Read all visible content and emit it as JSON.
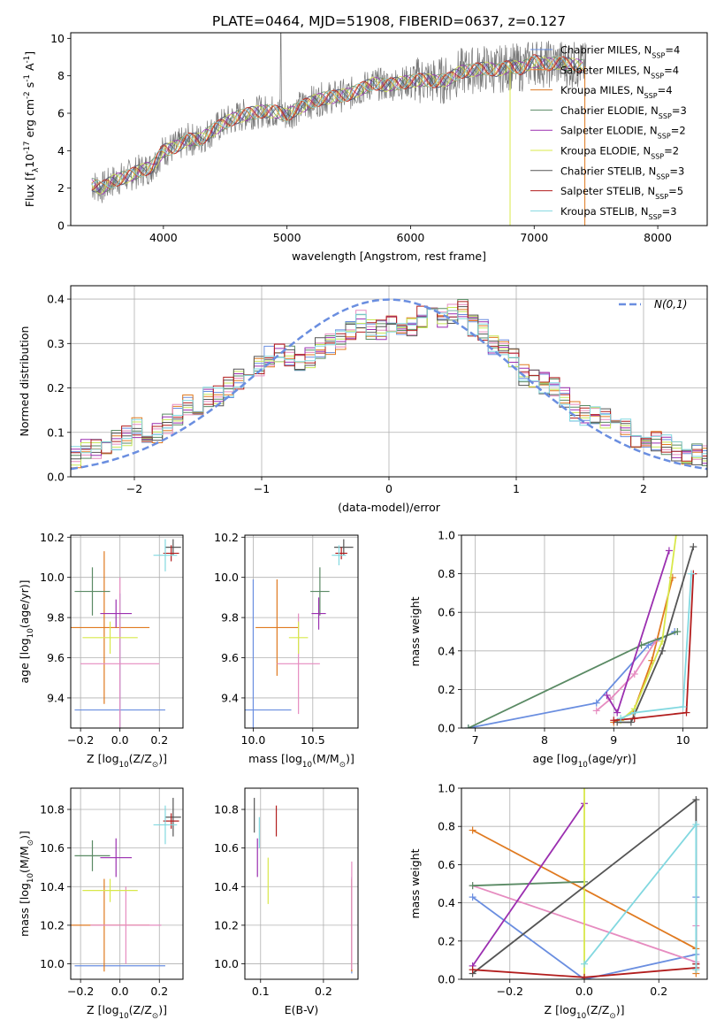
{
  "figure_title": "PLATE=0464, MJD=51908, FIBERID=0637, z=0.127",
  "colors": {
    "c0": "#6a8ee0",
    "c1": "#f07d3c",
    "c2": "#e07a20",
    "c3": "#5a8a64",
    "c4": "#9b2fb0",
    "c5": "#d8e84a",
    "c6": "#555555",
    "c7": "#b21d1d",
    "c8": "#82d8e0",
    "pink": "#e68cc0",
    "lime": "#c8e85a",
    "grid": "#b0b0b0",
    "data": "#777777"
  },
  "legend_panel1": [
    {
      "label": "Chabrier MILES, N$_{SSP}$=4",
      "color": "#6a8ee0"
    },
    {
      "label": "Salpeter MILES, N$_{SSP}$=4",
      "color": "#f07d3c"
    },
    {
      "label": "Kroupa MILES, N$_{SSP}$=4",
      "color": "#e07a20"
    },
    {
      "label": "Chabrier ELODIE, N$_{SSP}$=3",
      "color": "#5a8a64"
    },
    {
      "label": "Salpeter ELODIE, N$_{SSP}$=2",
      "color": "#9b2fb0"
    },
    {
      "label": "Kroupa ELODIE, N$_{SSP}$=2",
      "color": "#d8e84a"
    },
    {
      "label": "Chabrier STELIB, N$_{SSP}$=3",
      "color": "#555555"
    },
    {
      "label": "Salpeter STELIB, N$_{SSP}$=5",
      "color": "#b21d1d"
    },
    {
      "label": "Kroupa STELIB, N$_{SSP}$=3",
      "color": "#82d8e0"
    }
  ],
  "chart_data": [
    {
      "id": "spectrum",
      "type": "line",
      "xlabel": "wavelength [Angstrom, rest frame]",
      "ylabel": "Flux [f$_\\lambda$10$^{-17}$ erg cm$^{-2}$ s$^{-1}$ A$^{-1}$]",
      "xlim": [
        3250,
        8400
      ],
      "ylim": [
        0,
        10.3
      ],
      "xticks": [
        4000,
        5000,
        6000,
        7000,
        8000
      ],
      "yticks": [
        0,
        2,
        4,
        6,
        8,
        10
      ],
      "grid": false,
      "data_points": {
        "x": [
          3420,
          3500,
          3600,
          3700,
          3800,
          3900,
          4000,
          4100,
          4200,
          4300,
          4400,
          4500,
          4600,
          4700,
          4800,
          4900,
          5000,
          5100,
          5200,
          5300,
          5400,
          5500,
          5600,
          5700,
          5800,
          5900,
          6000,
          6100,
          6200,
          6300,
          6400,
          6500,
          6600,
          6700,
          6800,
          6900,
          7000,
          7100,
          7200,
          7300,
          7400
        ],
        "y": [
          2.2,
          2.0,
          2.4,
          2.6,
          2.9,
          3.1,
          4.0,
          4.2,
          4.6,
          4.6,
          5.1,
          5.5,
          5.8,
          6.0,
          6.1,
          6.1,
          5.9,
          6.3,
          6.6,
          6.8,
          6.9,
          7.0,
          7.3,
          7.6,
          7.5,
          7.6,
          7.7,
          7.8,
          7.7,
          7.8,
          8.2,
          8.3,
          8.4,
          8.3,
          8.5,
          8.4,
          8.8,
          8.6,
          8.7,
          8.6,
          8.5
        ]
      }
    },
    {
      "id": "residual-hist",
      "type": "area",
      "xlabel": "(data-model)/error",
      "ylabel": "Normed distribution",
      "xlim": [
        -2.5,
        2.5
      ],
      "ylim": [
        0,
        0.43
      ],
      "xticks": [
        -2,
        -1,
        0,
        1,
        2
      ],
      "yticks": [
        0.0,
        0.1,
        0.2,
        0.3,
        0.4
      ],
      "grid": true,
      "legend": "top-right",
      "gaussian_label": "$\\mathcal{N}(0,1)$",
      "bin_start": -2.5,
      "bin_width": 0.1,
      "hist": [
        0.045,
        0.06,
        0.065,
        0.075,
        0.08,
        0.09,
        0.11,
        0.1,
        0.1,
        0.12,
        0.14,
        0.16,
        0.16,
        0.18,
        0.18,
        0.2,
        0.22,
        0.24,
        0.25,
        0.27,
        0.28,
        0.27,
        0.26,
        0.27,
        0.29,
        0.3,
        0.31,
        0.33,
        0.35,
        0.33,
        0.33,
        0.35,
        0.32,
        0.34,
        0.36,
        0.38,
        0.36,
        0.37,
        0.38,
        0.34,
        0.33,
        0.3,
        0.29,
        0.27,
        0.23,
        0.22,
        0.21,
        0.2,
        0.18,
        0.15,
        0.14,
        0.14,
        0.13,
        0.12,
        0.11,
        0.09,
        0.08,
        0.08,
        0.07,
        0.06,
        0.05,
        0.05,
        0.05,
        0.05
      ]
    },
    {
      "id": "age-vs-Z",
      "type": "scatter",
      "xlabel": "Z [log$_{10}$(Z/Z$_\\odot$)]",
      "ylabel": "age  [log$_{10}$(age/yr)]",
      "xlim": [
        -0.25,
        0.32
      ],
      "ylim": [
        9.25,
        10.21
      ],
      "xticks": [
        -0.2,
        0.0,
        0.2
      ],
      "yticks": [
        9.4,
        9.6,
        9.8,
        10.0,
        10.2
      ],
      "grid": true,
      "points": [
        {
          "x": 0.0,
          "y": 9.34,
          "xerr": 0.23,
          "yerr": 0.58,
          "color": "#6a8ee0"
        },
        {
          "x": -0.08,
          "y": 9.75,
          "xerr": 0.23,
          "yerr": 0.38,
          "color": "#e07a20"
        },
        {
          "x": 0.0,
          "y": 9.57,
          "xerr": 0.2,
          "yerr": 0.43,
          "color": "#e68cc0"
        },
        {
          "x": -0.14,
          "y": 9.93,
          "xerr": 0.09,
          "yerr": 0.12,
          "color": "#5a8a64"
        },
        {
          "x": -0.02,
          "y": 9.82,
          "xerr": 0.08,
          "yerr": 0.07,
          "color": "#9b2fb0"
        },
        {
          "x": -0.05,
          "y": 9.7,
          "xerr": 0.14,
          "yerr": 0.08,
          "color": "#d8e84a"
        },
        {
          "x": 0.27,
          "y": 10.15,
          "xerr": 0.04,
          "yerr": 0.04,
          "color": "#555555"
        },
        {
          "x": 0.26,
          "y": 10.12,
          "xerr": 0.04,
          "yerr": 0.04,
          "color": "#b21d1d"
        },
        {
          "x": 0.23,
          "y": 10.11,
          "xerr": 0.06,
          "yerr": 0.08,
          "color": "#82d8e0"
        }
      ]
    },
    {
      "id": "age-vs-mass",
      "type": "scatter",
      "xlabel": "mass [log$_{10}$(M/M$_\\odot$)]",
      "ylabel": "",
      "xlim": [
        9.93,
        10.88
      ],
      "ylim": [
        9.25,
        10.21
      ],
      "xticks": [
        10.0,
        10.5
      ],
      "yticks": [
        9.4,
        9.6,
        9.8,
        10.0,
        10.2
      ],
      "grid": true,
      "points": [
        {
          "x": 10.0,
          "y": 9.34,
          "xerr": 0.32,
          "yerr": 0.65,
          "color": "#6a8ee0"
        },
        {
          "x": 10.2,
          "y": 9.75,
          "xerr": 0.18,
          "yerr": 0.24,
          "color": "#e07a20"
        },
        {
          "x": 10.38,
          "y": 9.57,
          "xerr": 0.18,
          "yerr": 0.25,
          "color": "#e68cc0"
        },
        {
          "x": 10.56,
          "y": 9.93,
          "xerr": 0.08,
          "yerr": 0.12,
          "color": "#5a8a64"
        },
        {
          "x": 10.55,
          "y": 9.82,
          "xerr": 0.06,
          "yerr": 0.08,
          "color": "#9b2fb0"
        },
        {
          "x": 10.38,
          "y": 9.7,
          "xerr": 0.08,
          "yerr": 0.08,
          "color": "#d8e84a"
        },
        {
          "x": 10.76,
          "y": 10.15,
          "xerr": 0.08,
          "yerr": 0.04,
          "color": "#555555"
        },
        {
          "x": 10.74,
          "y": 10.12,
          "xerr": 0.05,
          "yerr": 0.03,
          "color": "#b21d1d"
        },
        {
          "x": 10.72,
          "y": 10.11,
          "xerr": 0.06,
          "yerr": 0.05,
          "color": "#82d8e0"
        }
      ]
    },
    {
      "id": "mass-weight-vs-age",
      "type": "line",
      "xlabel": "age  [log$_{10}$(age/yr)]",
      "ylabel": "mass weight",
      "xlim": [
        6.8,
        10.35
      ],
      "ylim": [
        0,
        1.0
      ],
      "xticks": [
        7,
        8,
        9,
        10
      ],
      "yticks": [
        0.0,
        0.2,
        0.4,
        0.6,
        0.8,
        1.0
      ],
      "grid": true,
      "series": [
        {
          "color": "#6a8ee0",
          "x": [
            6.9,
            8.75,
            9.5,
            9.88
          ],
          "y": [
            0.0,
            0.13,
            0.43,
            0.5
          ]
        },
        {
          "color": "#e07a20",
          "x": [
            9.0,
            9.28,
            9.55,
            9.85
          ],
          "y": [
            0.03,
            0.08,
            0.35,
            0.78
          ]
        },
        {
          "color": "#e68cc0",
          "x": [
            8.75,
            8.95,
            9.3,
            9.6
          ],
          "y": [
            0.09,
            0.15,
            0.28,
            0.45
          ]
        },
        {
          "color": "#5a8a64",
          "x": [
            6.9,
            9.4,
            9.92
          ],
          "y": [
            0.0,
            0.43,
            0.5
          ]
        },
        {
          "color": "#9b2fb0",
          "x": [
            8.9,
            9.05,
            9.8
          ],
          "y": [
            0.17,
            0.08,
            0.92
          ]
        },
        {
          "color": "#d8e84a",
          "x": [
            9.1,
            9.3,
            9.7,
            9.9
          ],
          "y": [
            0.04,
            0.1,
            0.45,
            1.0
          ]
        },
        {
          "color": "#555555",
          "x": [
            9.05,
            9.25,
            9.7,
            10.15
          ],
          "y": [
            0.03,
            0.03,
            0.4,
            0.94
          ]
        },
        {
          "color": "#b21d1d",
          "x": [
            9.0,
            9.3,
            10.05,
            10.15
          ],
          "y": [
            0.04,
            0.05,
            0.08,
            0.8
          ]
        },
        {
          "color": "#82d8e0",
          "x": [
            9.1,
            9.3,
            10.0,
            10.12
          ],
          "y": [
            0.05,
            0.08,
            0.11,
            0.8
          ]
        }
      ]
    },
    {
      "id": "mass-vs-Z",
      "type": "scatter",
      "xlabel": "Z [log$_{10}$(Z/Z$_\\odot$)]",
      "ylabel": "mass [log$_{10}$(M/M$_\\odot$)]",
      "xlim": [
        -0.25,
        0.32
      ],
      "ylim": [
        9.92,
        10.91
      ],
      "xticks": [
        -0.2,
        0.0,
        0.2
      ],
      "yticks": [
        10.0,
        10.2,
        10.4,
        10.6,
        10.8
      ],
      "grid": true,
      "points": [
        {
          "x": 0.0,
          "y": 9.99,
          "xerr": 0.23,
          "yerr": 0.0,
          "color": "#6a8ee0"
        },
        {
          "x": -0.08,
          "y": 10.2,
          "xerr": 0.23,
          "yerr": 0.24,
          "color": "#e07a20"
        },
        {
          "x": 0.03,
          "y": 10.2,
          "xerr": 0.18,
          "yerr": 0.2,
          "color": "#e68cc0"
        },
        {
          "x": -0.14,
          "y": 10.56,
          "xerr": 0.09,
          "yerr": 0.08,
          "color": "#5a8a64"
        },
        {
          "x": -0.02,
          "y": 10.55,
          "xerr": 0.08,
          "yerr": 0.1,
          "color": "#9b2fb0"
        },
        {
          "x": -0.05,
          "y": 10.38,
          "xerr": 0.14,
          "yerr": 0.06,
          "color": "#d8e84a"
        },
        {
          "x": 0.27,
          "y": 10.76,
          "xerr": 0.04,
          "yerr": 0.1,
          "color": "#555555"
        },
        {
          "x": 0.26,
          "y": 10.74,
          "xerr": 0.04,
          "yerr": 0.04,
          "color": "#b21d1d"
        },
        {
          "x": 0.23,
          "y": 10.72,
          "xerr": 0.06,
          "yerr": 0.1,
          "color": "#82d8e0"
        }
      ]
    },
    {
      "id": "mass-vs-ebv",
      "type": "scatter",
      "xlabel": "E(B-V)",
      "ylabel": "",
      "xlim": [
        0.075,
        0.255
      ],
      "ylim": [
        9.92,
        10.91
      ],
      "xticks": [
        0.1,
        0.2
      ],
      "yticks": [
        10.0,
        10.2,
        10.4,
        10.6,
        10.8
      ],
      "grid": true,
      "points": [
        {
          "x": 0.245,
          "y": 10.2,
          "yerr": 0.25,
          "color": "#6a8ee0"
        },
        {
          "x": 0.245,
          "y": 10.2,
          "yerr": 0.24,
          "color": "#e07a20"
        },
        {
          "x": 0.245,
          "y": 10.25,
          "yerr": 0.28,
          "color": "#e68cc0"
        },
        {
          "x": 0.09,
          "y": 10.77,
          "yerr": 0.09,
          "color": "#555555"
        },
        {
          "x": 0.125,
          "y": 10.74,
          "yerr": 0.08,
          "color": "#b21d1d"
        },
        {
          "x": 0.098,
          "y": 10.68,
          "yerr": 0.08,
          "color": "#82d8e0"
        },
        {
          "x": 0.095,
          "y": 10.55,
          "yerr": 0.1,
          "color": "#9b2fb0"
        },
        {
          "x": 0.112,
          "y": 10.43,
          "yerr": 0.12,
          "color": "#d8e84a"
        }
      ]
    },
    {
      "id": "mass-weight-vs-Z",
      "type": "line",
      "xlabel": "Z [log$_{10}$(Z/Z$_\\odot$)]",
      "ylabel": "mass weight",
      "xlim": [
        -0.33,
        0.33
      ],
      "ylim": [
        0,
        1.0
      ],
      "xticks": [
        -0.2,
        0.0,
        0.2
      ],
      "yticks": [
        0.0,
        0.2,
        0.4,
        0.6,
        0.8,
        1.0
      ],
      "grid": true,
      "series": [
        {
          "color": "#6a8ee0",
          "x": [
            -0.3,
            0.0,
            0.3,
            0.3
          ],
          "y": [
            0.43,
            0.0,
            0.13,
            0.43
          ]
        },
        {
          "color": "#e07a20",
          "x": [
            -0.3,
            0.3,
            0.3
          ],
          "y": [
            0.78,
            0.16,
            0.03
          ]
        },
        {
          "color": "#e68cc0",
          "x": [
            -0.3,
            0.3,
            0.3
          ],
          "y": [
            0.49,
            0.09,
            0.28
          ]
        },
        {
          "color": "#5a8a64",
          "x": [
            -0.3,
            0.0
          ],
          "y": [
            0.49,
            0.51
          ]
        },
        {
          "color": "#9b2fb0",
          "x": [
            -0.3,
            0.0
          ],
          "y": [
            0.07,
            0.92
          ]
        },
        {
          "color": "#d8e84a",
          "x": [
            0.0,
            0.0
          ],
          "y": [
            0.0,
            1.0
          ]
        },
        {
          "color": "#555555",
          "x": [
            -0.3,
            0.3,
            0.3
          ],
          "y": [
            0.03,
            0.94,
            0.08
          ]
        },
        {
          "color": "#b21d1d",
          "x": [
            -0.3,
            0.0,
            0.3,
            0.3
          ],
          "y": [
            0.05,
            0.01,
            0.06,
            0.08
          ]
        },
        {
          "color": "#82d8e0",
          "x": [
            0.0,
            0.3,
            0.3
          ],
          "y": [
            0.08,
            0.81,
            0.05
          ]
        }
      ]
    }
  ]
}
